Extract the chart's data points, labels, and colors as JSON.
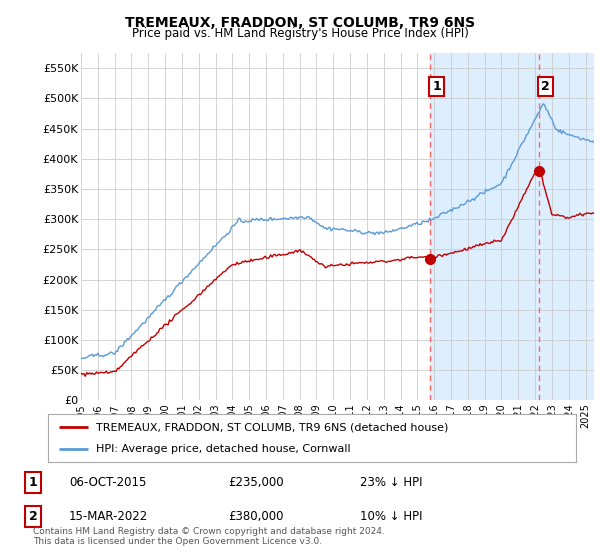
{
  "title": "TREMEAUX, FRADDON, ST COLUMB, TR9 6NS",
  "subtitle": "Price paid vs. HM Land Registry's House Price Index (HPI)",
  "legend_line1": "TREMEAUX, FRADDON, ST COLUMB, TR9 6NS (detached house)",
  "legend_line2": "HPI: Average price, detached house, Cornwall",
  "annotation1_date": "06-OCT-2015",
  "annotation1_price": "£235,000",
  "annotation1_hpi": "23% ↓ HPI",
  "annotation2_date": "15-MAR-2022",
  "annotation2_price": "£380,000",
  "annotation2_hpi": "10% ↓ HPI",
  "footer": "Contains HM Land Registry data © Crown copyright and database right 2024.\nThis data is licensed under the Open Government Licence v3.0.",
  "hpi_color": "#5b9bd5",
  "price_color": "#c00000",
  "vline_color": "#ff6666",
  "background_color": "#ffffff",
  "plot_bg_color": "#ffffff",
  "highlight_color": "#ddeeff",
  "ylim": [
    0,
    575000
  ],
  "xlim_start": 1995.0,
  "xlim_end": 2025.5,
  "sale1_x": 2015.76,
  "sale1_y": 235000,
  "sale2_x": 2022.21,
  "sale2_y": 380000,
  "vline1_x": 2015.76,
  "vline2_x": 2022.21
}
